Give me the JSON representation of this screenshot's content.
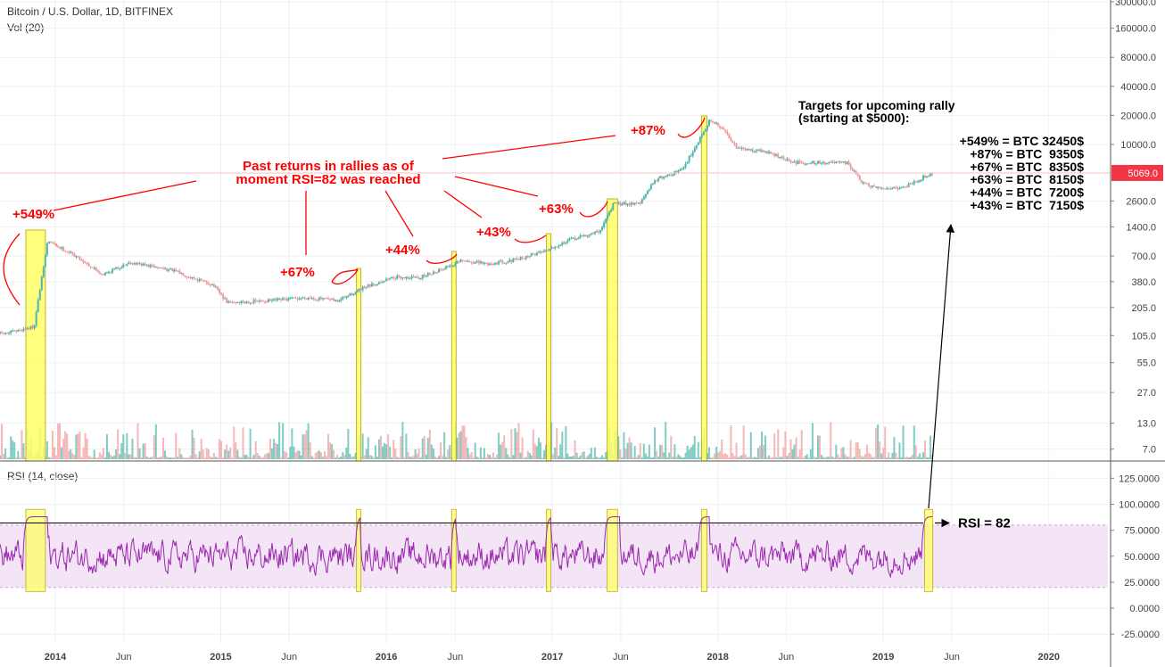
{
  "header": {
    "title": "Bitcoin / U.S. Dollar, 1D, BITFINEX",
    "volume_label": "Vol (20)",
    "rsi_label": "RSI (14, close)"
  },
  "chart_data": [
    {
      "type": "line",
      "title": "Bitcoin / U.S. Dollar, 1D, BITFINEX",
      "log_scale": true,
      "y_ticks": [
        "300000.0",
        "160000.0",
        "80000.0",
        "40000.0",
        "20000.0",
        "10000.0",
        "5069.0",
        "2600.0",
        "1400.0",
        "700.0",
        "380.0",
        "205.0",
        "105.0",
        "55.0",
        "27.0",
        "13.0",
        "7.0"
      ],
      "x_ticks": [
        "2014",
        "Jun",
        "2015",
        "Jun",
        "2016",
        "Jun",
        "2017",
        "Jun",
        "2018",
        "Jun",
        "2019",
        "Jun",
        "2020"
      ],
      "last_price": "5069.0",
      "x": [
        "2013-09",
        "2013-11",
        "2013-12",
        "2014-02",
        "2014-04",
        "2014-06",
        "2014-09",
        "2014-12",
        "2015-01",
        "2015-04",
        "2015-07",
        "2015-09",
        "2015-11",
        "2016-01",
        "2016-03",
        "2016-06",
        "2016-08",
        "2016-10",
        "2016-12",
        "2017-02",
        "2017-04",
        "2017-05",
        "2017-07",
        "2017-08",
        "2017-10",
        "2017-12",
        "2018-01",
        "2018-02",
        "2018-04",
        "2018-06",
        "2018-08",
        "2018-10",
        "2018-11",
        "2018-12",
        "2019-02",
        "2019-04"
      ],
      "values": [
        110,
        130,
        1000,
        700,
        450,
        600,
        500,
        350,
        230,
        240,
        260,
        240,
        330,
        420,
        420,
        620,
        580,
        640,
        800,
        1050,
        1250,
        2400,
        2500,
        4300,
        5500,
        18000,
        14000,
        9000,
        8500,
        6500,
        6500,
        6400,
        4000,
        3500,
        3600,
        5000
      ],
      "volume_ymax": 40,
      "highlights": [
        "2013-10-28 to 2013-12-10",
        "2015-10-31",
        "2016-05-28",
        "2016-12-23",
        "2017-05-02 to 2017-05-25",
        "2017-11-26 to 2017-12-08",
        "2019-04-02 to 2019-04-20"
      ],
      "annotations": {
        "past_returns": [
          "Past returns in rallies as of",
          "moment RSI=82 was reached"
        ],
        "labels": [
          "+549%",
          "+67%",
          "+44%",
          "+43%",
          "+63%",
          "+87%"
        ],
        "targets_title": [
          "Targets for upcoming rally",
          "(starting at $5000):"
        ],
        "targets": [
          "+549% = BTC 32450$",
          "+87% = BTC  9350$",
          "+67% = BTC  8350$",
          "+63% = BTC  8150$",
          "+44% = BTC  7200$",
          "+43% = BTC  7150$"
        ]
      }
    },
    {
      "type": "line",
      "title": "RSI (14, close)",
      "y_ticks": [
        "125.0000",
        "100.0000",
        "75.0000",
        "50.0000",
        "25.0000",
        "0.0000",
        "-25.0000"
      ],
      "band": [
        20,
        80
      ],
      "threshold": 82,
      "threshold_label": "RSI = 82"
    }
  ],
  "colors": {
    "candle_up": "#4db6ac",
    "candle_down": "#ef9a9a",
    "rsi_line": "#9c27b0",
    "rsi_band": "#f3e5f5",
    "highlight": "#ffff66",
    "annotation": "#ff0000",
    "price_label": "#f23645"
  }
}
